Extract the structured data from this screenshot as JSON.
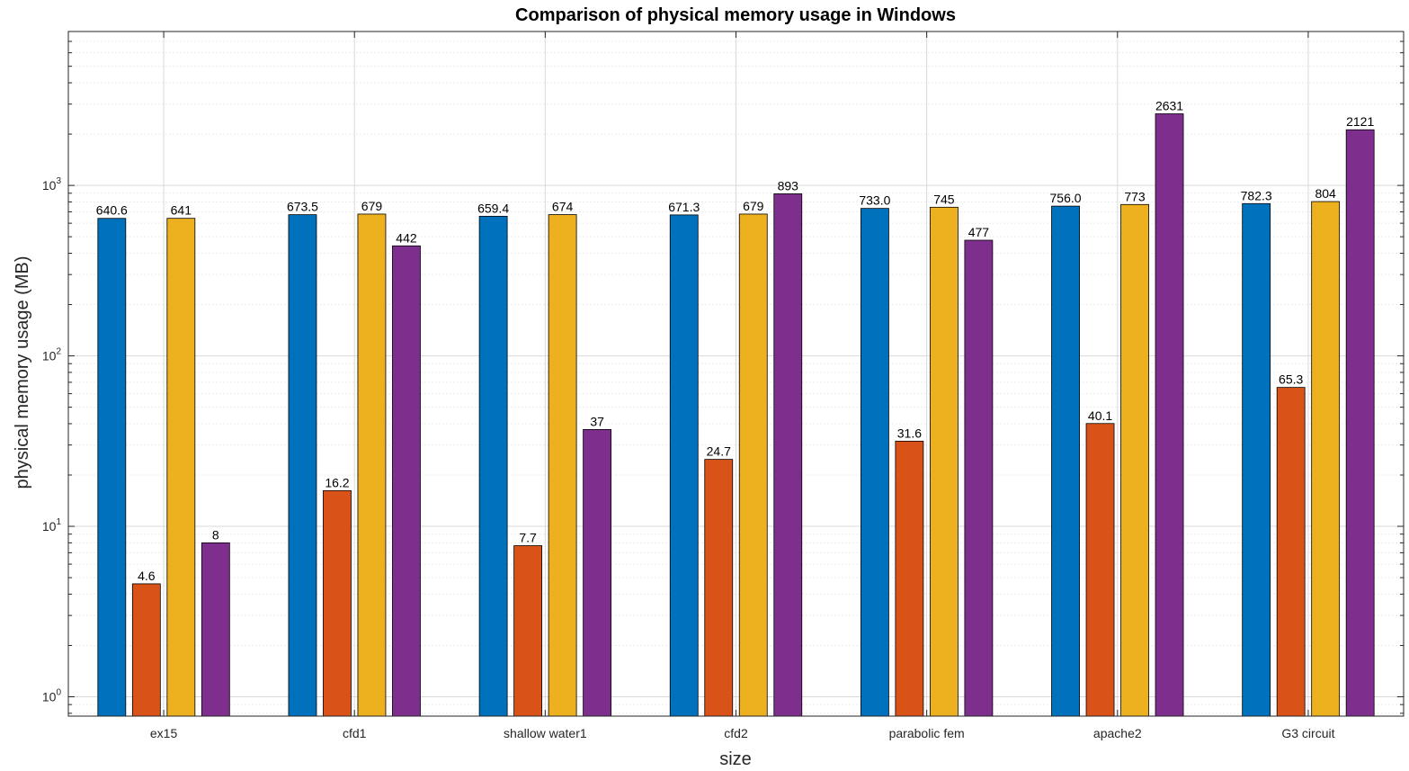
{
  "chart_data": {
    "type": "bar",
    "title": "Comparison of physical memory usage in Windows",
    "xlabel": "size",
    "ylabel": "physical memory usage (MB)",
    "yscale": "log",
    "ylim": [
      0.77,
      8000
    ],
    "grid": true,
    "legend": null,
    "categories": [
      "ex15",
      "cfd1",
      "shallow water1",
      "cfd2",
      "parabolic fem",
      "apache2",
      "G3 circuit"
    ],
    "series": [
      {
        "color": "#0072BD",
        "values": [
          640.6,
          673.5,
          659.4,
          671.3,
          733.0,
          756.0,
          782.3
        ],
        "labels": [
          "640.6",
          "673.5",
          "659.4",
          "671.3",
          "733.0",
          "756.0",
          "782.3"
        ]
      },
      {
        "color": "#D95319",
        "values": [
          4.6,
          16.2,
          7.7,
          24.7,
          31.6,
          40.1,
          65.3
        ],
        "labels": [
          "4.6",
          "16.2",
          "7.7",
          "24.7",
          "31.6",
          "40.1",
          "65.3"
        ]
      },
      {
        "color": "#EDB120",
        "values": [
          641,
          679,
          674,
          679,
          745,
          773,
          804
        ],
        "labels": [
          "641",
          "679",
          "674",
          "679",
          "745",
          "773",
          "804"
        ]
      },
      {
        "color": "#7E2F8E",
        "values": [
          8,
          442,
          37,
          893,
          477,
          2631,
          2121
        ],
        "labels": [
          "8",
          "442",
          "37",
          "893",
          "477",
          "2631",
          "2121"
        ]
      }
    ],
    "yticks": [
      {
        "value": 1,
        "base": "10",
        "exp": "0"
      },
      {
        "value": 10,
        "base": "10",
        "exp": "1"
      },
      {
        "value": 100,
        "base": "10",
        "exp": "2"
      },
      {
        "value": 1000,
        "base": "10",
        "exp": "3"
      }
    ]
  }
}
